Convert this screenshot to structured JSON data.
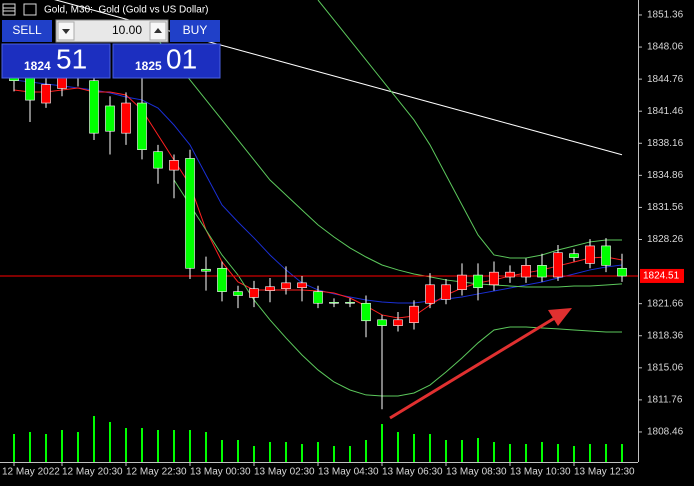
{
  "chart_data": {
    "type": "candlestick",
    "title": "Gold, M30:  Gold (Gold vs US Dollar)",
    "categories": [
      "12 May 2022",
      null,
      null,
      "12 May 20:30",
      null,
      null,
      null,
      "12 May 22:30",
      null,
      null,
      null,
      "13 May 00:30",
      null,
      null,
      null,
      "13 May 02:30",
      null,
      null,
      null,
      "13 May 04:30",
      null,
      null,
      null,
      "13 May 06:30",
      null,
      null,
      null,
      "13 May 08:30",
      null,
      null,
      null,
      "13 May 10:30",
      null,
      null,
      null,
      "13 May 12:30",
      null,
      null,
      null
    ],
    "open": [
      1845.2,
      1844.9,
      1842.3,
      1843.8,
      1845.0,
      1844.6,
      1842.0,
      1839.2,
      1842.3,
      1837.3,
      1835.4,
      1836.6,
      1825.2,
      1825.3,
      1822.9,
      1822.3,
      1823.0,
      1823.2,
      1823.3,
      1822.9,
      1821.8,
      1821.8,
      1821.7,
      1820.0,
      1819.4,
      1819.7,
      1821.7,
      1822.1,
      1823.1,
      1824.6,
      1823.6,
      1824.4,
      1824.4,
      1825.6,
      1824.4,
      1826.8,
      1825.8,
      1827.6,
      1825.3
    ],
    "close": [
      1844.6,
      1842.6,
      1844.2,
      1844.9,
      1845.5,
      1839.2,
      1839.4,
      1842.3,
      1837.5,
      1835.6,
      1836.4,
      1825.3,
      1825.0,
      1822.9,
      1822.5,
      1823.2,
      1823.4,
      1823.8,
      1823.8,
      1821.7,
      1821.7,
      1821.7,
      1819.9,
      1819.4,
      1820.0,
      1821.4,
      1823.6,
      1823.6,
      1824.6,
      1823.3,
      1824.9,
      1824.9,
      1825.6,
      1824.4,
      1826.9,
      1826.4,
      1827.6,
      1825.6,
      1824.5
    ],
    "high": [
      1846.0,
      1845.7,
      1845.0,
      1846.0,
      1846.2,
      1846.0,
      1843.0,
      1843.4,
      1845.0,
      1838.0,
      1837.0,
      1837.5,
      1826.5,
      1826.0,
      1823.5,
      1824.0,
      1824.3,
      1825.5,
      1824.5,
      1823.5,
      1822.2,
      1822.2,
      1822.5,
      1820.5,
      1820.8,
      1822.0,
      1824.8,
      1824.2,
      1825.8,
      1825.8,
      1826.0,
      1825.6,
      1826.3,
      1826.8,
      1827.7,
      1827.3,
      1828.3,
      1828.4,
      1826.8
    ],
    "low": [
      1843.5,
      1840.35,
      1841.8,
      1843.0,
      1844.0,
      1838.5,
      1837.0,
      1838.0,
      1836.5,
      1834.0,
      1832.5,
      1824.2,
      1823.0,
      1821.9,
      1821.2,
      1821.3,
      1821.8,
      1822.6,
      1821.9,
      1821.2,
      1821.3,
      1821.3,
      1818.2,
      1810.8,
      1818.8,
      1819.0,
      1821.2,
      1821.6,
      1822.5,
      1822.0,
      1823.0,
      1823.8,
      1823.8,
      1823.9,
      1824.0,
      1826.0,
      1825.3,
      1824.9,
      1823.9
    ],
    "volume": [
      28,
      30,
      28,
      32,
      30,
      46,
      40,
      34,
      34,
      32,
      32,
      32,
      30,
      22,
      22,
      16,
      20,
      20,
      18,
      20,
      16,
      16,
      22,
      38,
      30,
      28,
      28,
      22,
      22,
      24,
      20,
      18,
      18,
      20,
      18,
      16,
      18,
      18,
      18
    ],
    "bull_color": "#ff0000",
    "bear_color": "#00ff00",
    "wick_color": "#ffffff",
    "volume_color": "#00ff00",
    "overlays": [
      {
        "color": "#ffffff",
        "values": [
          1854.08,
          1853.63,
          1853.18,
          1852.73,
          1852.28,
          1851.83,
          1851.38,
          1850.93,
          1850.48,
          1850.03,
          1849.58,
          1849.13,
          1848.68,
          1848.23,
          1847.78,
          1847.33,
          1846.88,
          1846.43,
          1845.98,
          1845.53,
          1845.08,
          1844.63,
          1844.18,
          1843.73,
          1843.28,
          1842.83,
          1842.38,
          1841.93,
          1841.48,
          1841.03,
          1840.58,
          1840.13,
          1839.68,
          1839.23,
          1838.78,
          1838.33,
          1837.88,
          1837.43,
          1836.98
        ]
      },
      {
        "color": "#1a2fd6",
        "values": [
          1844.67,
          1844.47,
          1844.26,
          1844.06,
          1843.85,
          1843.64,
          1843.34,
          1842.92,
          1842.62,
          1841.79,
          1840.04,
          1837.99,
          1834.9,
          1831.81,
          1830.06,
          1828.42,
          1826.67,
          1825.13,
          1823.79,
          1823.07,
          1822.66,
          1822.35,
          1822.04,
          1821.83,
          1821.73,
          1821.73,
          1821.94,
          1822.14,
          1822.35,
          1822.66,
          1822.96,
          1823.27,
          1823.58,
          1823.89,
          1824.3,
          1824.71,
          1825.13,
          1825.43,
          1825.64
        ]
      },
      {
        "color": "#ff2020",
        "values": [
          1843.64,
          1843.44,
          1843.44,
          1843.64,
          1843.85,
          1843.44,
          1843.44,
          1843.13,
          1841.59,
          1839.01,
          1836.44,
          1833.87,
          1829.24,
          1825.95,
          1823.89,
          1823.07,
          1823.07,
          1823.07,
          1823.07,
          1822.96,
          1822.76,
          1822.24,
          1821.42,
          1820.5,
          1820.19,
          1820.39,
          1821.52,
          1822.55,
          1823.27,
          1823.79,
          1824.1,
          1824.51,
          1824.82,
          1825.13,
          1825.54,
          1825.95,
          1826.36,
          1826.46,
          1826.15
        ]
      },
      {
        "color": "#5cc85c",
        "values": [
          null,
          null,
          null,
          null,
          null,
          null,
          null,
          null,
          null,
          null,
          null,
          null,
          null,
          null,
          null,
          null,
          null,
          null,
          null,
          1852.9,
          1850.85,
          1848.79,
          1846.73,
          1844.67,
          1842.62,
          1840.56,
          1837.99,
          1834.9,
          1831.81,
          1828.73,
          1826.67,
          1826.36,
          1826.36,
          1826.67,
          1827.18,
          1827.59,
          1828.01,
          1828.21,
          1828.21
        ]
      },
      {
        "color": "#5cc85c",
        "values": [
          null,
          null,
          null,
          null,
          null,
          null,
          null,
          null,
          null,
          1848.79,
          1846.73,
          1844.67,
          1842.62,
          1840.56,
          1838.5,
          1836.44,
          1834.38,
          1832.84,
          1831.3,
          1829.76,
          1828.52,
          1827.39,
          1826.46,
          1825.64,
          1825.13,
          1824.71,
          1824.41,
          1824.1,
          1823.89,
          1823.69,
          1823.58,
          1823.48,
          1823.38,
          1823.38,
          1823.38,
          1823.48,
          1823.48,
          1823.58,
          1823.69
        ]
      },
      {
        "color": "#5cc85c",
        "values": [
          null,
          null,
          null,
          null,
          null,
          null,
          null,
          null,
          null,
          null,
          1834.38,
          1831.81,
          1829.24,
          1826.67,
          1824.61,
          1822.04,
          1819.98,
          1818.13,
          1816.38,
          1814.84,
          1813.6,
          1812.78,
          1812.27,
          1812.16,
          1812.16,
          1812.47,
          1813.29,
          1814.63,
          1816.07,
          1817.62,
          1818.95,
          1819.26,
          1819.26,
          1819.16,
          1819.06,
          1818.95,
          1818.85,
          1818.75,
          1818.75
        ]
      }
    ],
    "current_price": 1824.51,
    "current_price_color": "#ff0000",
    "ylim": [
      1805.37,
      1852.9
    ],
    "yticks": [
      1851.36,
      1848.06,
      1844.76,
      1841.46,
      1838.16,
      1834.86,
      1831.56,
      1828.26,
      1821.66,
      1818.36,
      1815.06,
      1811.76,
      1808.46
    ]
  },
  "trade_panel": {
    "sell": "SELL",
    "buy": "BUY",
    "volume": "10.00",
    "bid_big": "1824",
    "bid_small": "51",
    "ask_big": "1825",
    "ask_small": "01"
  }
}
